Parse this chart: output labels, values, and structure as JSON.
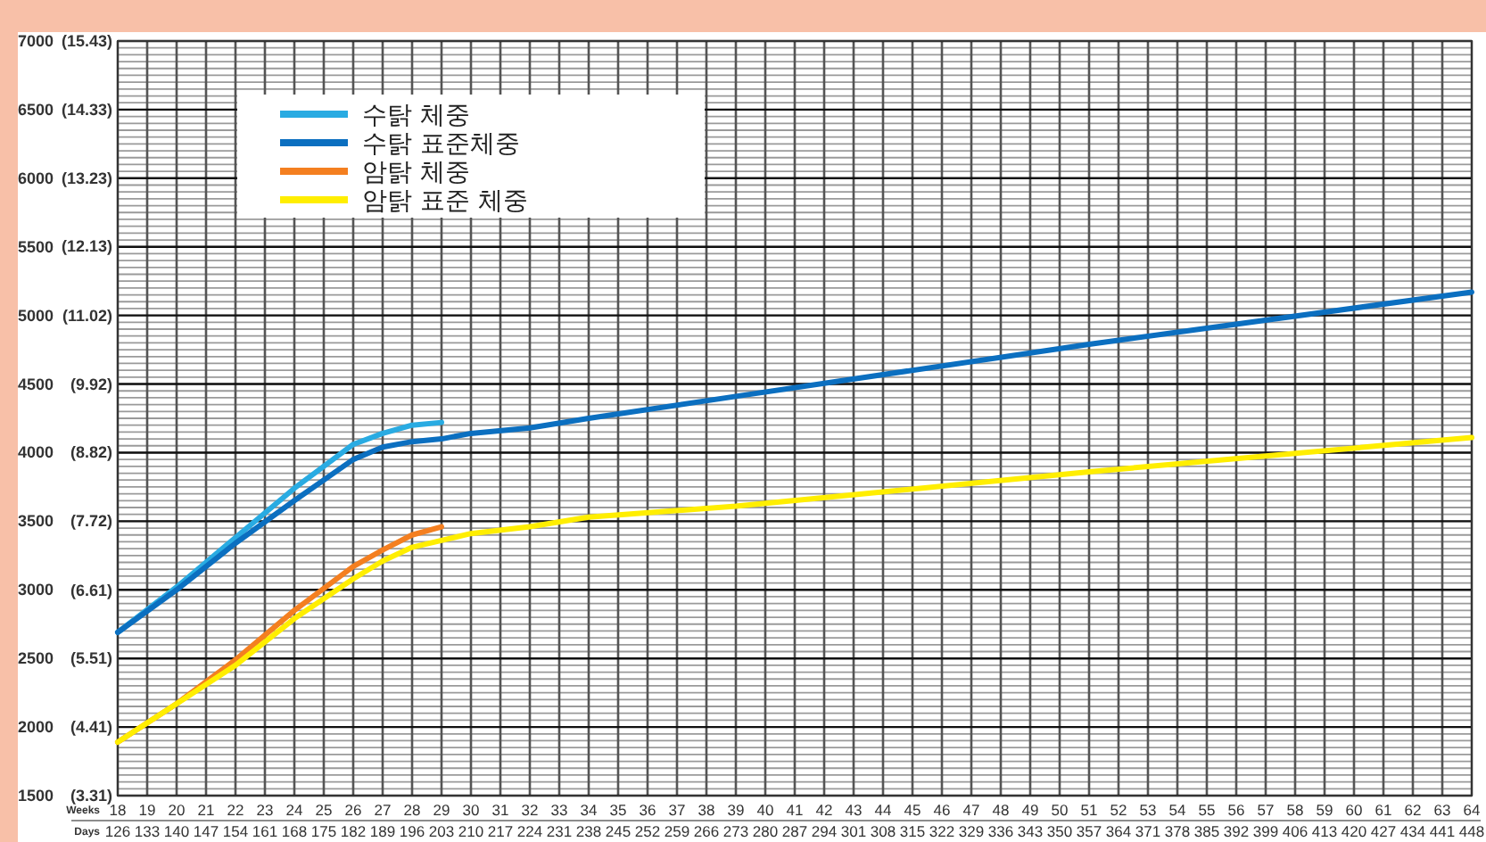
{
  "chart_data": {
    "type": "line",
    "xlabel": "Weeks",
    "x2label": "Days",
    "xlim": [
      18,
      64
    ],
    "xticks": [
      18,
      19,
      20,
      21,
      22,
      23,
      24,
      25,
      26,
      27,
      28,
      29,
      30,
      31,
      32,
      33,
      34,
      35,
      36,
      37,
      38,
      39,
      40,
      41,
      42,
      43,
      44,
      45,
      46,
      47,
      48,
      49,
      50,
      51,
      52,
      53,
      54,
      55,
      56,
      57,
      58,
      59,
      60,
      61,
      62,
      63,
      64
    ],
    "x2lim": [
      126,
      448
    ],
    "x2ticks": [
      126,
      133,
      140,
      147,
      154,
      161,
      168,
      175,
      182,
      189,
      196,
      203,
      210,
      217,
      224,
      231,
      238,
      245,
      252,
      259,
      266,
      273,
      280,
      287,
      294,
      301,
      308,
      315,
      322,
      329,
      336,
      343,
      350,
      357,
      364,
      371,
      378,
      385,
      392,
      399,
      406,
      413,
      420,
      427,
      434,
      441,
      448
    ],
    "ylim": [
      1500,
      7000
    ],
    "yticks": [
      1500,
      2000,
      2500,
      3000,
      3500,
      4000,
      4500,
      5000,
      5500,
      6000,
      6500,
      7000
    ],
    "y2lim": [
      3.31,
      15.43
    ],
    "y2ticks": [
      {
        "value": 3.31,
        "label": "(3.31)"
      },
      {
        "value": 4.41,
        "label": "(4.41)"
      },
      {
        "value": 5.51,
        "label": "(5.51)"
      },
      {
        "value": 6.61,
        "label": "(6.61)"
      },
      {
        "value": 7.72,
        "label": "(7.72)"
      },
      {
        "value": 8.82,
        "label": "(8.82)"
      },
      {
        "value": 9.92,
        "label": "(9.92)"
      },
      {
        "value": 11.02,
        "label": "(11.02)"
      },
      {
        "value": 12.13,
        "label": "(12.13)"
      },
      {
        "value": 13.23,
        "label": "(13.23)"
      },
      {
        "value": 14.33,
        "label": "(14.33)"
      },
      {
        "value": 15.43,
        "label": "(15.43)"
      }
    ],
    "grid": true,
    "legend": "top left",
    "marker": "none",
    "line_style": "solid",
    "series": [
      {
        "name": "수탉 체중",
        "color": "#29abe2",
        "x": [
          18,
          20,
          22,
          24,
          26,
          27,
          28,
          29
        ],
        "values": [
          2690,
          3020,
          3380,
          3740,
          4060,
          4140,
          4200,
          4220
        ]
      },
      {
        "name": "수탉 표준체중",
        "color": "#0b6fc0",
        "x": [
          18,
          20,
          22,
          24,
          26,
          27,
          28,
          29,
          30,
          32,
          34,
          39,
          51,
          64
        ],
        "values": [
          2690,
          3000,
          3340,
          3650,
          3950,
          4040,
          4080,
          4100,
          4140,
          4180,
          4250,
          4410,
          4790,
          5170
        ]
      },
      {
        "name": "암탉 체중",
        "color": "#f47f20",
        "x": [
          18,
          20,
          22,
          24,
          26,
          27,
          28,
          29
        ],
        "values": [
          1890,
          2170,
          2490,
          2850,
          3170,
          3290,
          3400,
          3460
        ]
      },
      {
        "name": "암탉 표준 체중",
        "color": "#ffee00",
        "x": [
          18,
          20,
          22,
          24,
          26,
          27,
          28,
          29,
          30,
          32,
          34,
          39,
          51,
          64
        ],
        "values": [
          1890,
          2170,
          2450,
          2790,
          3080,
          3210,
          3310,
          3360,
          3410,
          3460,
          3530,
          3610,
          3860,
          4110
        ]
      }
    ]
  }
}
